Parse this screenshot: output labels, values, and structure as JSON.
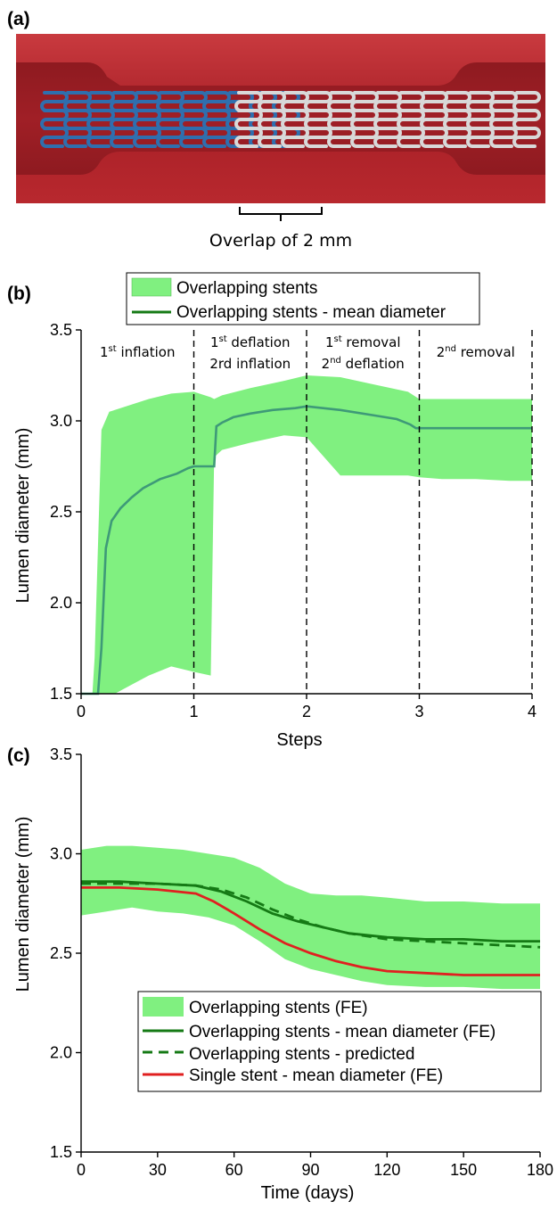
{
  "panel_a": {
    "label": "(a)",
    "caption": "Overlap of 2 mm",
    "colors": {
      "vessel": "#b8282e",
      "vessel_dark": "#8e1a20",
      "stent_blue": "#2f6fae",
      "stent_white": "#d8d8d8"
    }
  },
  "panel_b": {
    "label": "(b)",
    "xlabel": "Steps",
    "ylabel": "Lumen diameter (mm)",
    "legend": [
      "Overlapping stents",
      "Overlapping stents - mean diameter"
    ],
    "phases": [
      {
        "line1": "1",
        "sup1": "st",
        "rest1": " inflation",
        "line2": "",
        "sup2": "",
        "rest2": ""
      },
      {
        "line1": "1",
        "sup1": "st",
        "rest1": " deflation",
        "line2": "2rd inflation",
        "sup2": "",
        "rest2": ""
      },
      {
        "line1": "1",
        "sup1": "st",
        "rest1": " removal",
        "line2": "2",
        "sup2": "nd",
        "rest2": " deflation"
      },
      {
        "line1": "2",
        "sup1": "nd",
        "rest1": " removal",
        "line2": "",
        "sup2": "",
        "rest2": ""
      }
    ]
  },
  "panel_c": {
    "label": "(c)",
    "xlabel": "Time (days)",
    "ylabel": "Lumen diameter (mm)",
    "legend": [
      "Overlapping stents (FE)",
      "Overlapping stents - mean diameter (FE)",
      "Overlapping stents - predicted",
      "Single stent - mean diameter (FE)"
    ]
  },
  "colors": {
    "band": "#80f080",
    "mean_b": "#3e9a78",
    "mean_c": "#157a15",
    "single": "#e02020",
    "predicted": "#157a15"
  },
  "chart_data": [
    {
      "type": "area",
      "xlim": [
        0,
        4
      ],
      "ylim": [
        1.5,
        3.5
      ],
      "xticks": [
        "0",
        "1",
        "2",
        "3",
        "4"
      ],
      "yticks": [
        "1.5",
        "2.0",
        "2.5",
        "3.0",
        "3.5"
      ],
      "phase_boundaries": [
        1,
        2,
        3,
        4
      ],
      "series": [
        {
          "name": "Overlapping stents",
          "x": [
            0,
            0.1,
            0.12,
            0.18,
            0.25,
            0.3,
            0.45,
            0.6,
            0.8,
            1.0,
            1.15,
            1.18,
            1.25,
            1.5,
            1.8,
            2.0,
            2.3,
            2.6,
            2.9,
            3.0,
            3.2,
            3.5,
            3.8,
            4.0
          ],
          "upper": [
            1.5,
            1.5,
            1.7,
            2.95,
            3.05,
            3.06,
            3.09,
            3.12,
            3.15,
            3.16,
            3.13,
            3.12,
            3.14,
            3.18,
            3.22,
            3.25,
            3.24,
            3.2,
            3.16,
            3.12,
            3.12,
            3.12,
            3.12,
            3.12
          ],
          "lower": [
            1.5,
            1.5,
            1.5,
            1.5,
            1.5,
            1.5,
            1.55,
            1.6,
            1.65,
            1.62,
            1.6,
            2.8,
            2.84,
            2.88,
            2.92,
            2.91,
            2.7,
            2.7,
            2.7,
            2.69,
            2.68,
            2.68,
            2.67,
            2.67
          ]
        },
        {
          "name": "Overlapping stents - mean diameter",
          "x": [
            0,
            0.15,
            0.18,
            0.22,
            0.27,
            0.35,
            0.45,
            0.55,
            0.7,
            0.85,
            0.95,
            1.0,
            1.18,
            1.2,
            1.25,
            1.35,
            1.5,
            1.7,
            1.9,
            2.0,
            2.3,
            2.6,
            2.8,
            2.92,
            2.97,
            3.2,
            3.6,
            4.0
          ],
          "y": [
            1.5,
            1.5,
            1.75,
            2.3,
            2.45,
            2.52,
            2.58,
            2.63,
            2.68,
            2.71,
            2.74,
            2.75,
            2.75,
            2.97,
            2.99,
            3.02,
            3.04,
            3.06,
            3.07,
            3.08,
            3.06,
            3.03,
            3.01,
            2.98,
            2.96,
            2.96,
            2.96,
            2.96
          ]
        }
      ]
    },
    {
      "type": "line",
      "xlim": [
        0,
        180
      ],
      "ylim": [
        1.5,
        3.5
      ],
      "xticks": [
        "0",
        "30",
        "60",
        "90",
        "120",
        "150",
        "180"
      ],
      "yticks": [
        "1.5",
        "2.0",
        "2.5",
        "3.0",
        "3.5"
      ],
      "series": [
        {
          "name": "Overlapping stents (FE)",
          "x": [
            0,
            10,
            20,
            30,
            40,
            50,
            60,
            70,
            80,
            90,
            100,
            110,
            120,
            135,
            150,
            165,
            180
          ],
          "upper": [
            3.02,
            3.04,
            3.04,
            3.03,
            3.02,
            3.0,
            2.98,
            2.93,
            2.85,
            2.8,
            2.79,
            2.79,
            2.78,
            2.76,
            2.76,
            2.75,
            2.75
          ],
          "lower": [
            2.69,
            2.71,
            2.73,
            2.71,
            2.7,
            2.68,
            2.64,
            2.56,
            2.47,
            2.42,
            2.39,
            2.36,
            2.34,
            2.33,
            2.33,
            2.32,
            2.32
          ]
        },
        {
          "name": "Overlapping stents - mean diameter (FE)",
          "x": [
            0,
            15,
            30,
            45,
            55,
            65,
            75,
            85,
            95,
            105,
            120,
            135,
            150,
            165,
            180
          ],
          "y": [
            2.86,
            2.86,
            2.85,
            2.84,
            2.81,
            2.76,
            2.7,
            2.66,
            2.63,
            2.6,
            2.58,
            2.57,
            2.57,
            2.56,
            2.56
          ]
        },
        {
          "name": "Overlapping stents - predicted",
          "x": [
            0,
            15,
            30,
            45,
            55,
            65,
            75,
            85,
            95,
            105,
            120,
            135,
            150,
            165,
            180
          ],
          "y": [
            2.85,
            2.85,
            2.85,
            2.84,
            2.82,
            2.78,
            2.72,
            2.67,
            2.63,
            2.6,
            2.57,
            2.56,
            2.55,
            2.54,
            2.53
          ]
        },
        {
          "name": "Single stent - mean diameter (FE)",
          "x": [
            0,
            15,
            30,
            45,
            52,
            60,
            70,
            80,
            90,
            100,
            110,
            120,
            135,
            150,
            165,
            180
          ],
          "y": [
            2.83,
            2.83,
            2.82,
            2.8,
            2.76,
            2.7,
            2.62,
            2.55,
            2.5,
            2.46,
            2.43,
            2.41,
            2.4,
            2.39,
            2.39,
            2.39
          ]
        }
      ]
    }
  ]
}
